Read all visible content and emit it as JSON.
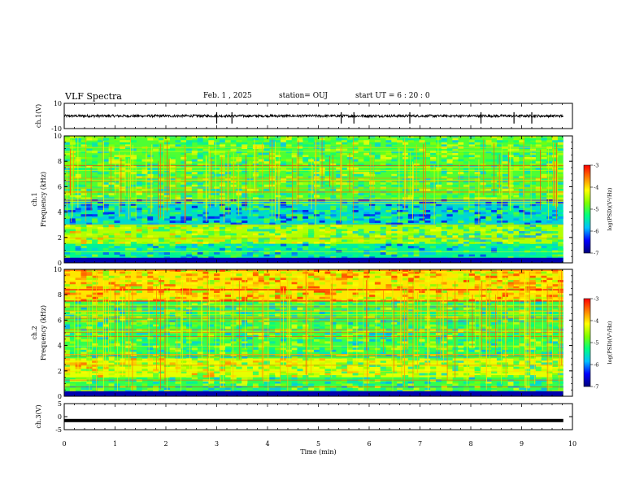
{
  "header": {
    "title": "VLF Spectra",
    "date": "Feb. 1 , 2025",
    "station": "station= OUJ",
    "start": "start UT = 6 : 20 : 0"
  },
  "chart_data": [
    {
      "type": "line",
      "panel": "ch1-waveform",
      "ylabel": "ch.1(V)",
      "ylim": [
        -10,
        10
      ],
      "yticks": [
        "10",
        "-10"
      ],
      "baseline": 0,
      "noise_amplitude": 1,
      "spikes_at_min": [
        3.0,
        3.3,
        5.45,
        5.7,
        6.8,
        8.2,
        8.85,
        9.2
      ]
    },
    {
      "type": "heatmap",
      "panel": "ch1-spectrogram",
      "ylabel": "ch.1",
      "ylabel2": "Frequency (kHz)",
      "ylim": [
        0,
        10
      ],
      "yticks": [
        "0",
        "2",
        "4",
        "6",
        "8",
        "10"
      ],
      "colorbar": {
        "label": "log(PSD)(V²/Hz)",
        "range": [
          -7,
          -3
        ],
        "ticks": [
          "-3",
          "-4",
          "-5",
          "-6",
          "-7"
        ],
        "colors": [
          "#00007a",
          "#0000ff",
          "#00c0ff",
          "#00ff80",
          "#80ff00",
          "#ffff00",
          "#ff8000",
          "#ff0000",
          "#ffffff"
        ]
      },
      "bands_khz": [
        {
          "from": 0,
          "to": 1.5,
          "level": -5.6
        },
        {
          "from": 1.5,
          "to": 3,
          "level": -4.8
        },
        {
          "from": 3,
          "to": 5,
          "level": -5.8
        },
        {
          "from": 5,
          "to": 10,
          "level": -5.2
        }
      ]
    },
    {
      "type": "heatmap",
      "panel": "ch2-spectrogram",
      "ylabel": "ch.2",
      "ylabel2": "Frequency (kHz)",
      "ylim": [
        0,
        10
      ],
      "yticks": [
        "0",
        "2",
        "4",
        "6",
        "8",
        "10"
      ],
      "colorbar": {
        "label": "log(PSD)(V²/Hz)",
        "range": [
          -7,
          -3
        ],
        "ticks": [
          "-3",
          "-4",
          "-5",
          "-6",
          "-7"
        ],
        "colors": [
          "#00007a",
          "#0000ff",
          "#00c0ff",
          "#00ff80",
          "#80ff00",
          "#ffff00",
          "#ff8000",
          "#ff0000",
          "#ffffff"
        ]
      },
      "bands_khz": [
        {
          "from": 0,
          "to": 1.5,
          "level": -5.3
        },
        {
          "from": 1.5,
          "to": 3,
          "level": -4.6
        },
        {
          "from": 3,
          "to": 7.5,
          "level": -5.3
        },
        {
          "from": 7.5,
          "to": 10,
          "level": -4.4
        }
      ]
    },
    {
      "type": "line",
      "panel": "ch3-waveform",
      "ylabel": "ch.3(V)",
      "ylim": [
        -5,
        5
      ],
      "yticks": [
        "5",
        "0",
        "-5"
      ],
      "baseline": -1.5,
      "xlabel": "Time (min)",
      "xlim": [
        0,
        10
      ],
      "xticks": [
        "0",
        "1",
        "2",
        "3",
        "4",
        "5",
        "6",
        "7",
        "8",
        "9",
        "10"
      ]
    }
  ]
}
